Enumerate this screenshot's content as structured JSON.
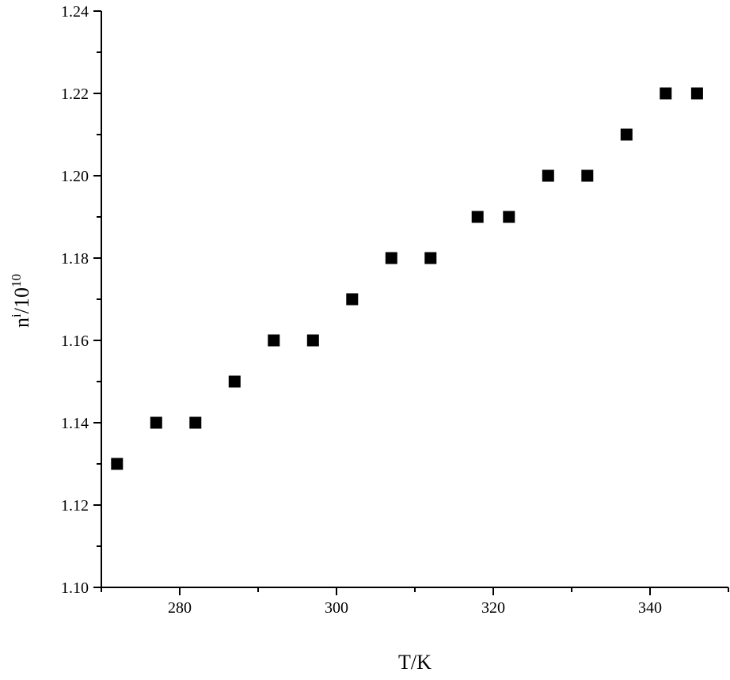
{
  "chart_data": {
    "type": "scatter",
    "xlabel": "T/K",
    "ylabel": {
      "base": "n",
      "sup1": "i",
      "middle": "/10",
      "sup2": "10"
    },
    "xlim": [
      270,
      350
    ],
    "ylim": [
      1.1,
      1.24
    ],
    "x_ticks": [
      "280",
      "300",
      "320",
      "340"
    ],
    "x_tick_values": [
      280,
      300,
      320,
      340
    ],
    "y_ticks": [
      "1.10",
      "1.12",
      "1.14",
      "1.16",
      "1.18",
      "1.20",
      "1.22",
      "1.24"
    ],
    "y_tick_values": [
      1.1,
      1.12,
      1.14,
      1.16,
      1.18,
      1.2,
      1.22,
      1.24
    ],
    "marker": "square",
    "marker_color": "#000000",
    "series": [
      {
        "x": [
          272,
          277,
          282,
          287,
          292,
          297,
          302,
          307,
          312,
          318,
          322,
          327,
          332,
          337,
          342,
          346
        ],
        "y": [
          1.13,
          1.14,
          1.14,
          1.15,
          1.16,
          1.16,
          1.17,
          1.18,
          1.18,
          1.19,
          1.19,
          1.2,
          1.2,
          1.21,
          1.22,
          1.22
        ]
      }
    ],
    "grid": false,
    "legend": "none"
  }
}
